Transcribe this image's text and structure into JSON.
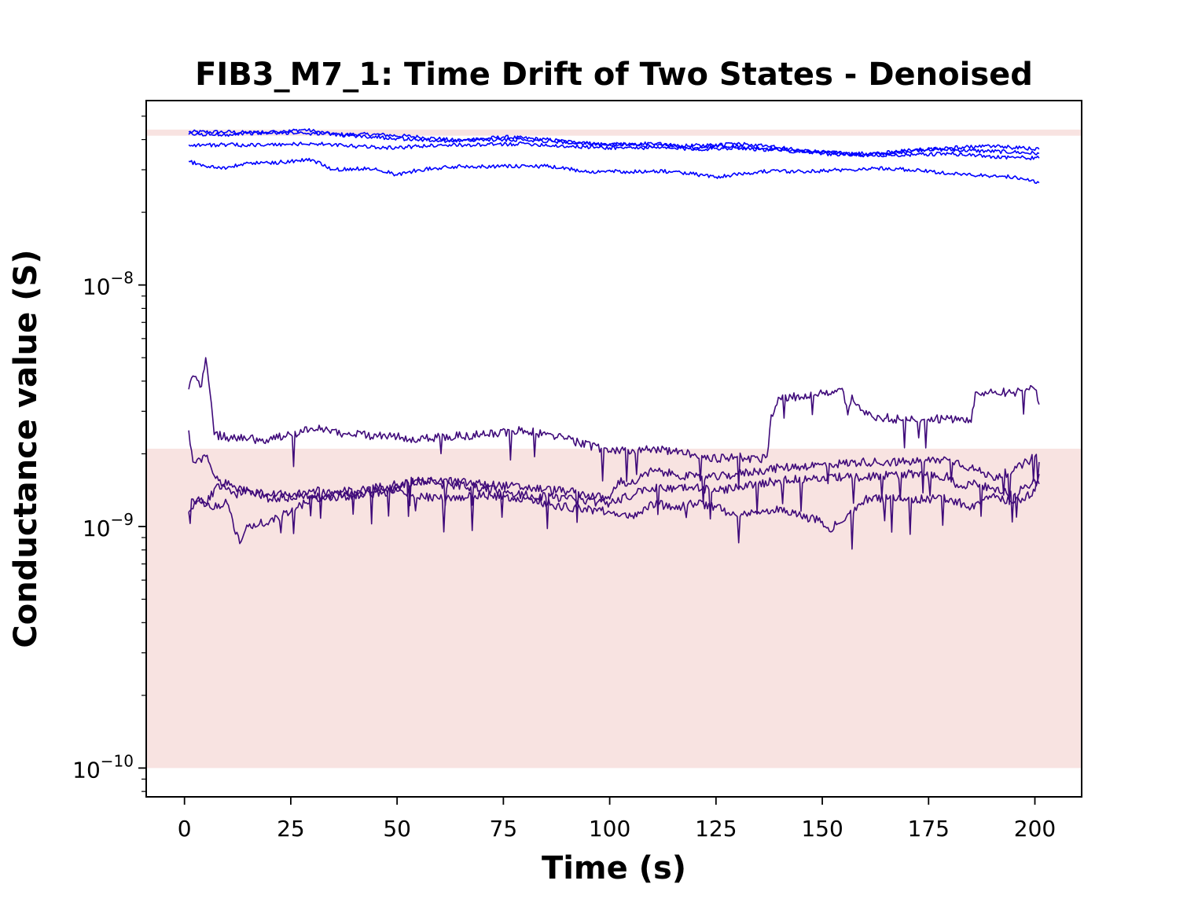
{
  "chart_data": {
    "type": "line",
    "title": "FIB3_M7_1: Time Drift of Two States - Denoised",
    "xlabel": "Time (s)",
    "ylabel": "Conductance value (S)",
    "xscale": "linear",
    "yscale": "log",
    "xlim": [
      -9,
      211
    ],
    "ylim": [
      7.6e-11,
      5.8e-08
    ],
    "xticks": [
      0,
      25,
      50,
      75,
      100,
      125,
      150,
      175,
      200
    ],
    "xtick_labels": [
      "0",
      "25",
      "50",
      "75",
      "100",
      "125",
      "150",
      "175",
      "200"
    ],
    "yticks": [
      1e-10,
      1e-09,
      1e-08
    ],
    "ytick_labels": [
      {
        "base": "10",
        "exp": "−10"
      },
      {
        "base": "10",
        "exp": "−9"
      },
      {
        "base": "10",
        "exp": "−8"
      }
    ],
    "bands": [
      {
        "y0": 4.15e-08,
        "y1": 4.4e-08,
        "color": "#f8e3e1"
      },
      {
        "y0": 1e-10,
        "y1": 2.1e-09,
        "color": "#f8e3e1"
      }
    ],
    "grid": false,
    "legend": "none",
    "series": [
      {
        "color": "#0000ff",
        "x": [
          1,
          10,
          20,
          28,
          35,
          45,
          55,
          65,
          75,
          85,
          95,
          105,
          115,
          125,
          135,
          145,
          155,
          165,
          175,
          185,
          195,
          201
        ],
        "values": [
          4.3e-08,
          4.3e-08,
          4.25e-08,
          4.4e-08,
          4.2e-08,
          4.2e-08,
          4.1e-08,
          3.95e-08,
          4.1e-08,
          4e-08,
          3.85e-08,
          3.8e-08,
          3.75e-08,
          3.8e-08,
          3.7e-08,
          3.6e-08,
          3.5e-08,
          3.5e-08,
          3.65e-08,
          3.6e-08,
          3.55e-08,
          3.5e-08
        ]
      },
      {
        "color": "#0000ff",
        "x": [
          1,
          10,
          20,
          30,
          40,
          50,
          60,
          70,
          80,
          90,
          100,
          110,
          120,
          130,
          140,
          150,
          160,
          170,
          180,
          190,
          201
        ],
        "values": [
          4.2e-08,
          4.2e-08,
          4.3e-08,
          4.25e-08,
          4.15e-08,
          4.05e-08,
          3.95e-08,
          4e-08,
          4e-08,
          3.9e-08,
          3.8e-08,
          3.85e-08,
          3.7e-08,
          3.85e-08,
          3.7e-08,
          3.5e-08,
          3.45e-08,
          3.6e-08,
          3.7e-08,
          3.75e-08,
          3.65e-08
        ]
      },
      {
        "color": "#0000ff",
        "x": [
          1,
          10,
          20,
          30,
          40,
          50,
          60,
          70,
          80,
          90,
          100,
          110,
          120,
          130,
          140,
          150,
          160,
          170,
          180,
          190,
          201
        ],
        "values": [
          3.8e-08,
          3.8e-08,
          3.8e-08,
          3.85e-08,
          3.75e-08,
          3.7e-08,
          3.8e-08,
          3.8e-08,
          3.85e-08,
          3.75e-08,
          3.7e-08,
          3.7e-08,
          3.65e-08,
          3.7e-08,
          3.6e-08,
          3.55e-08,
          3.45e-08,
          3.45e-08,
          3.5e-08,
          3.4e-08,
          3.35e-08
        ]
      },
      {
        "color": "#0000ff",
        "x": [
          1,
          5,
          10,
          15,
          20,
          25,
          30,
          35,
          45,
          50,
          55,
          65,
          75,
          85,
          95,
          105,
          115,
          125,
          135,
          145,
          155,
          165,
          175,
          185,
          195,
          201
        ],
        "values": [
          3.25e-08,
          3.1e-08,
          3.05e-08,
          3.2e-08,
          3.2e-08,
          3.25e-08,
          3.3e-08,
          3e-08,
          3.05e-08,
          2.85e-08,
          3e-08,
          3.1e-08,
          3.1e-08,
          3.1e-08,
          2.95e-08,
          2.95e-08,
          2.95e-08,
          2.8e-08,
          2.95e-08,
          2.95e-08,
          3e-08,
          3.05e-08,
          2.95e-08,
          2.85e-08,
          2.8e-08,
          2.65e-08
        ]
      },
      {
        "color": "#3f0a7a",
        "x": [
          1,
          2,
          4,
          5,
          6,
          7,
          10,
          15,
          20,
          25,
          30,
          40,
          50,
          55,
          60,
          70,
          80,
          85,
          90,
          100,
          110,
          120,
          125,
          130,
          135,
          137,
          138,
          140,
          150,
          155,
          156,
          157,
          160,
          170,
          180,
          185,
          186,
          195,
          200,
          201
        ],
        "values": [
          3.7e-09,
          4.2e-09,
          3.8e-09,
          5e-09,
          3.6e-09,
          2.4e-09,
          2.35e-09,
          2.3e-09,
          2.3e-09,
          2.4e-09,
          2.55e-09,
          2.4e-09,
          2.35e-09,
          2.3e-09,
          2.35e-09,
          2.4e-09,
          2.5e-09,
          2.4e-09,
          2.3e-09,
          2.05e-09,
          2.1e-09,
          2e-09,
          1.9e-09,
          1.95e-09,
          1.9e-09,
          1.95e-09,
          2.9e-09,
          3.4e-09,
          3.55e-09,
          3.6e-09,
          2.9e-09,
          3.5e-09,
          2.9e-09,
          2.75e-09,
          2.8e-09,
          2.7e-09,
          3.6e-09,
          3.6e-09,
          3.7e-09,
          3.2e-09
        ]
      },
      {
        "color": "#3f0a7a",
        "x": [
          1,
          2,
          5,
          8,
          12,
          16,
          20,
          30,
          40,
          50,
          60,
          70,
          80,
          90,
          100,
          102,
          105,
          110,
          115,
          120,
          125,
          130,
          140,
          150,
          160,
          170,
          180,
          185,
          190,
          195,
          200,
          201
        ],
        "values": [
          2.5e-09,
          1.85e-09,
          1.95e-09,
          1.55e-09,
          1.45e-09,
          1.4e-09,
          1.35e-09,
          1.4e-09,
          1.4e-09,
          1.5e-09,
          1.55e-09,
          1.5e-09,
          1.45e-09,
          1.4e-09,
          1.3e-09,
          1.55e-09,
          1.5e-09,
          1.7e-09,
          1.65e-09,
          1.6e-09,
          1.6e-09,
          1.65e-09,
          1.75e-09,
          1.8e-09,
          1.85e-09,
          1.85e-09,
          1.9e-09,
          1.75e-09,
          1.6e-09,
          1.7e-09,
          1.95e-09,
          1.85e-09
        ]
      },
      {
        "color": "#3f0a7a",
        "x": [
          1,
          3,
          6,
          10,
          13,
          15,
          20,
          25,
          30,
          40,
          50,
          60,
          70,
          80,
          90,
          100,
          105,
          110,
          115,
          120,
          125,
          130,
          135,
          140,
          145,
          150,
          152,
          153,
          155,
          160,
          170,
          180,
          185,
          190,
          195,
          200,
          201
        ],
        "values": [
          1.15e-09,
          1.3e-09,
          1.2e-09,
          1.25e-09,
          8.5e-10,
          1e-09,
          1.05e-09,
          1.15e-09,
          1.3e-09,
          1.35e-09,
          1.4e-09,
          1.3e-09,
          1.35e-09,
          1.3e-09,
          1.2e-09,
          1.15e-09,
          1.1e-09,
          1.25e-09,
          1.2e-09,
          1.25e-09,
          1.2e-09,
          1.1e-09,
          1.15e-09,
          1.2e-09,
          1.1e-09,
          1.05e-09,
          9.5e-10,
          1.05e-09,
          1.05e-09,
          1.3e-09,
          1.3e-09,
          1.3e-09,
          1.2e-09,
          1.35e-09,
          1.25e-09,
          1.4e-09,
          1.65e-09
        ]
      },
      {
        "color": "#3f0a7a",
        "x": [
          1,
          2,
          5,
          8,
          12,
          16,
          20,
          30,
          40,
          50,
          55,
          60,
          70,
          80,
          90,
          100,
          110,
          120,
          125,
          130,
          135,
          140,
          150,
          160,
          170,
          180,
          182,
          185,
          190,
          195,
          200,
          201
        ],
        "values": [
          1.15e-09,
          1.3e-09,
          1.25e-09,
          1.5e-09,
          1.35e-09,
          1.4e-09,
          1.3e-09,
          1.35e-09,
          1.35e-09,
          1.45e-09,
          1.6e-09,
          1.5e-09,
          1.45e-09,
          1.35e-09,
          1.3e-09,
          1.25e-09,
          1.45e-09,
          1.45e-09,
          1.4e-09,
          1.45e-09,
          1.5e-09,
          1.55e-09,
          1.6e-09,
          1.6e-09,
          1.65e-09,
          1.6e-09,
          1.45e-09,
          1.5e-09,
          1.45e-09,
          1.35e-09,
          1.55e-09,
          1.5e-09
        ]
      }
    ]
  }
}
